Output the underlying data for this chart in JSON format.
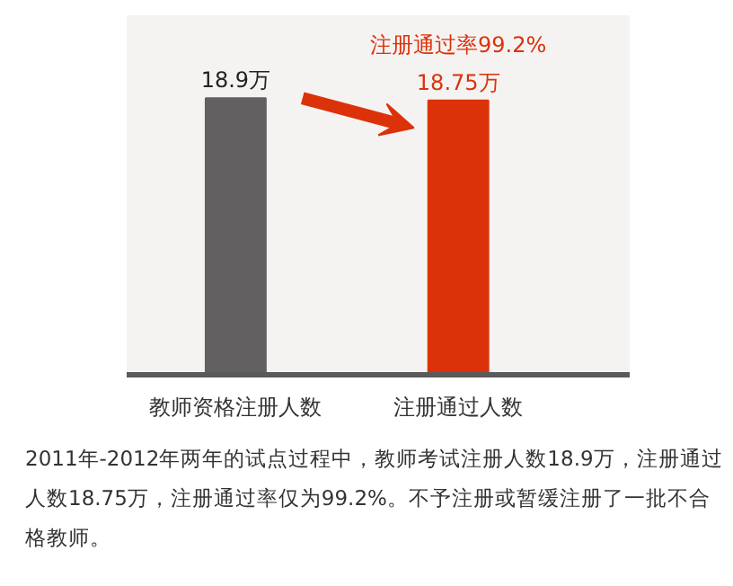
{
  "chart_data": {
    "type": "bar",
    "categories": [
      "教师资格注册人数",
      "注册通过人数"
    ],
    "values": [
      18.9,
      18.75
    ],
    "colors": [
      "#636061",
      "#dc3209"
    ],
    "value_labels": [
      "18.9万",
      "18.75万"
    ],
    "annotations": [
      "注册通过率99.2%",
      "2011年-2012年两年的试点过程中，教师考试注册人数18.9万，注册通过人数18.75万，注册通过率仅为99.2%。不予注册或暂缓注册了一批不合格教师。"
    ],
    "grid": false
  }
}
